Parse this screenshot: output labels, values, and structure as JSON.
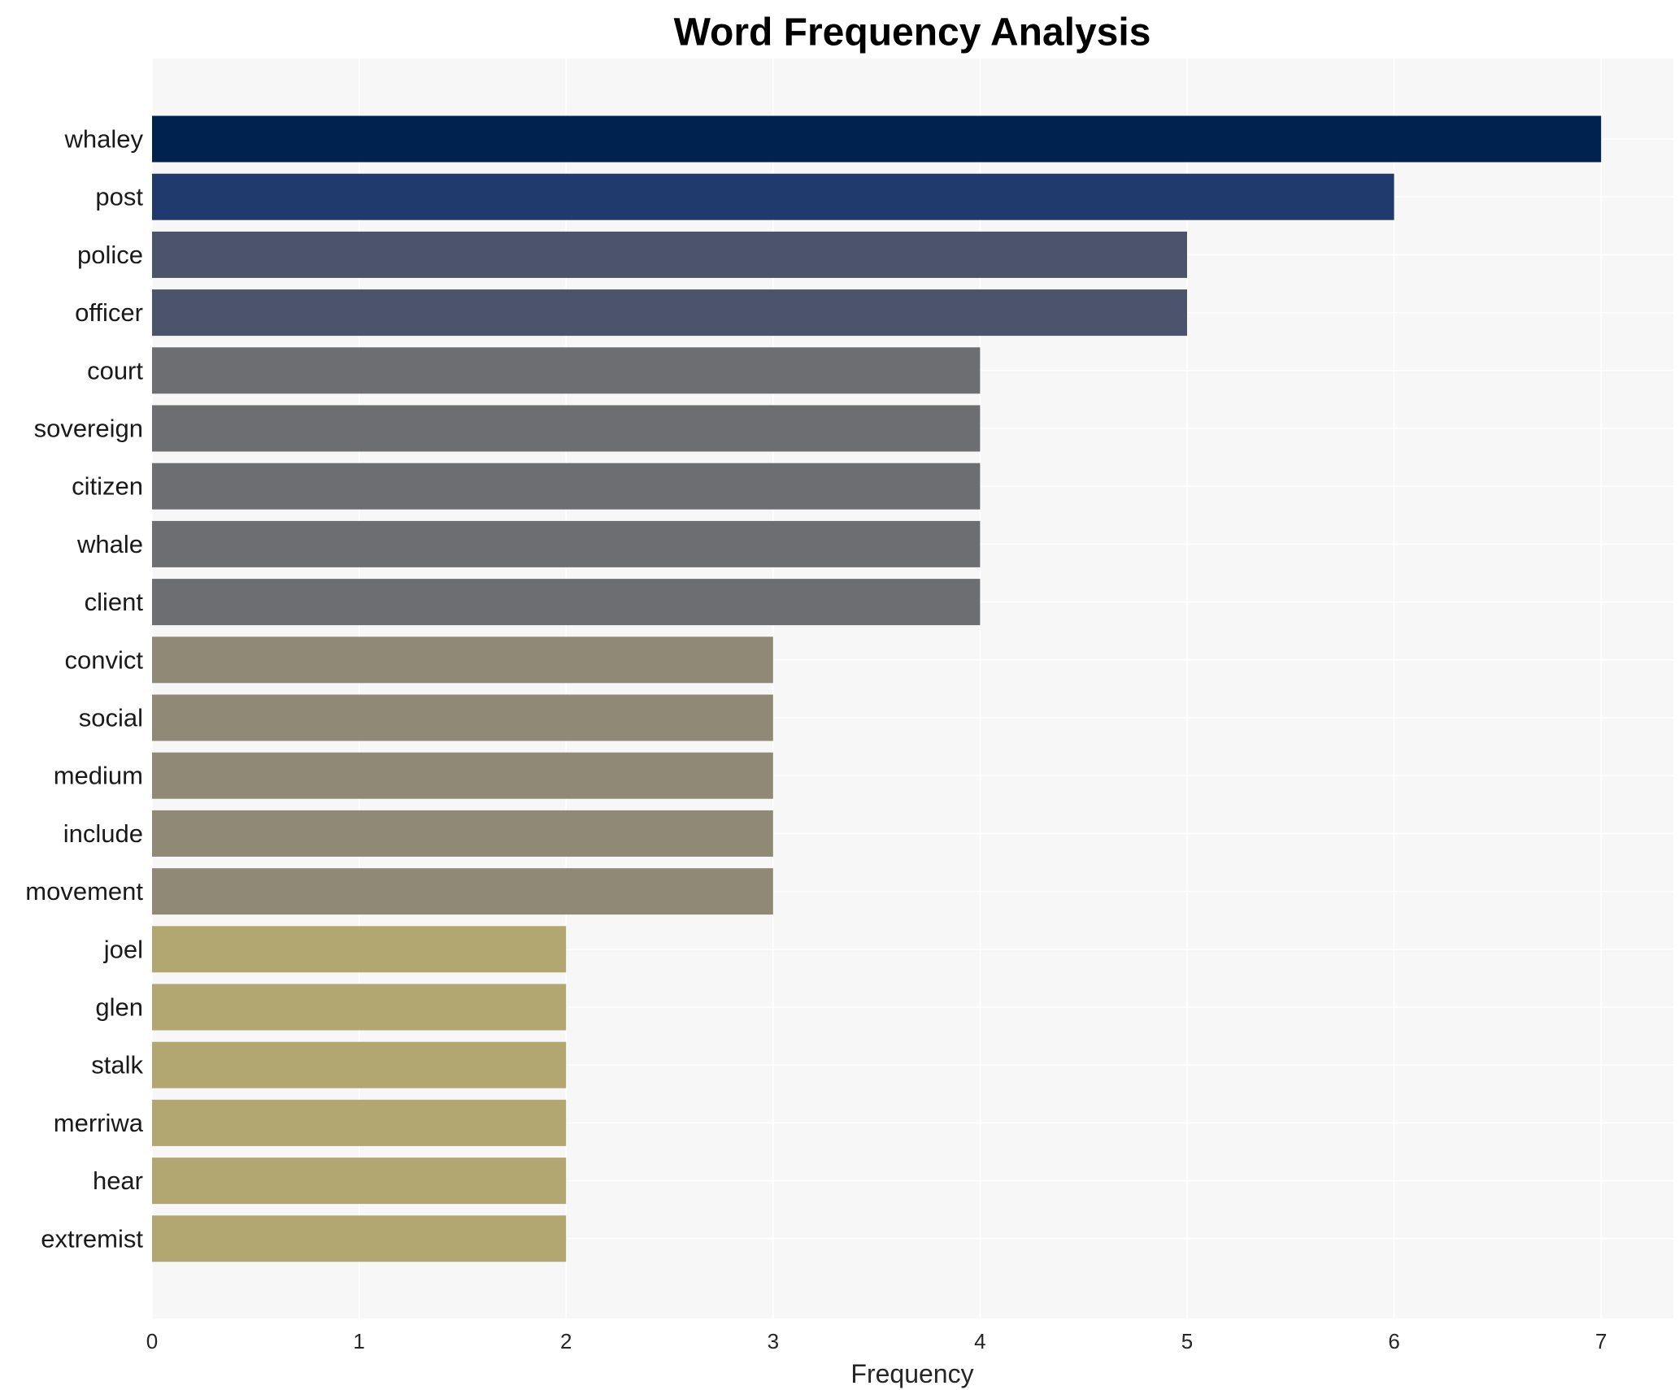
{
  "chart_data": {
    "type": "bar",
    "orientation": "horizontal",
    "title": "Word Frequency Analysis",
    "xlabel": "Frequency",
    "ylabel": "",
    "xlim": [
      0,
      7.35
    ],
    "xticks": [
      0,
      1,
      2,
      3,
      4,
      5,
      6,
      7
    ],
    "grid": true,
    "categories": [
      "whaley",
      "post",
      "police",
      "officer",
      "court",
      "sovereign",
      "citizen",
      "whale",
      "client",
      "convict",
      "social",
      "medium",
      "include",
      "movement",
      "joel",
      "glen",
      "stalk",
      "merriwa",
      "hear",
      "extremist"
    ],
    "values": [
      7,
      6,
      5,
      5,
      4,
      4,
      4,
      4,
      4,
      3,
      3,
      3,
      3,
      3,
      2,
      2,
      2,
      2,
      2,
      2
    ],
    "colors": [
      "#00224e",
      "#213a6e",
      "#4c546c",
      "#4c546c",
      "#6c6e72",
      "#6c6e72",
      "#6c6e72",
      "#6c6e72",
      "#6c6e72",
      "#8f8976",
      "#8f8976",
      "#8f8976",
      "#8f8976",
      "#8f8976",
      "#b2a671",
      "#b2a671",
      "#b2a671",
      "#b2a671",
      "#b2a671",
      "#b2a671"
    ],
    "background": "#f7f7f7",
    "gridColor": "#ffffff"
  }
}
